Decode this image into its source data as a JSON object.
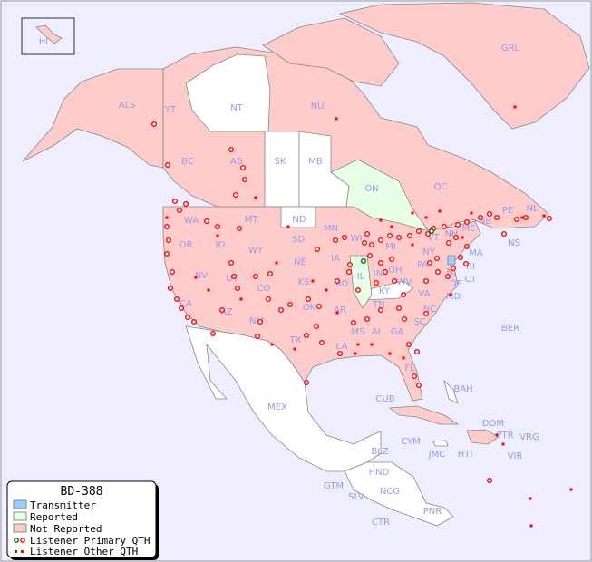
{
  "map": {
    "colors": {
      "water": "#eeeeff",
      "transmitter": "#99ccff",
      "reported": "#e6ffe6",
      "not_reported": "#ffcccc",
      "unlisted": "#ffffff",
      "border": "#888888",
      "label": "#9999ee",
      "marker": "#ff0000"
    },
    "labels": [
      "HI",
      "GRL",
      "ALS",
      "YT",
      "NT",
      "NU",
      "BC",
      "AB",
      "SK",
      "MB",
      "ON",
      "QC",
      "NL",
      "NB",
      "PE",
      "NS",
      "WA",
      "OR",
      "ID",
      "MT",
      "WY",
      "ND",
      "SD",
      "NE",
      "MN",
      "WI",
      "IA",
      "IL",
      "IN",
      "OH",
      "MI",
      "PA",
      "NY",
      "VT",
      "NH",
      "ME",
      "MA",
      "RI",
      "CT",
      "NJ",
      "DE",
      "MD",
      "WV",
      "VA",
      "KY",
      "TN",
      "NC",
      "SC",
      "GA",
      "AL",
      "MS",
      "LA",
      "AR",
      "MO",
      "KS",
      "OK",
      "TX",
      "NM",
      "AZ",
      "UT",
      "CO",
      "NV",
      "CA",
      "FL",
      "MEX",
      "CUB",
      "BAH",
      "BER",
      "DOM",
      "PTR",
      "VRG",
      "VIR",
      "HTI",
      "JMC",
      "CYM",
      "BLZ",
      "HND",
      "GTM",
      "SLV",
      "NCG",
      "CTR",
      "PNR"
    ]
  },
  "legend": {
    "title": "BD-388",
    "items": [
      {
        "label": "Transmitter",
        "icon": "swatch-blue"
      },
      {
        "label": "Reported",
        "icon": "swatch-green"
      },
      {
        "label": "Not Reported",
        "icon": "swatch-pink"
      },
      {
        "label": "Listener Primary QTH",
        "icon": "ring-markers"
      },
      {
        "label": "Listener Other QTH",
        "icon": "square-markers"
      }
    ]
  }
}
